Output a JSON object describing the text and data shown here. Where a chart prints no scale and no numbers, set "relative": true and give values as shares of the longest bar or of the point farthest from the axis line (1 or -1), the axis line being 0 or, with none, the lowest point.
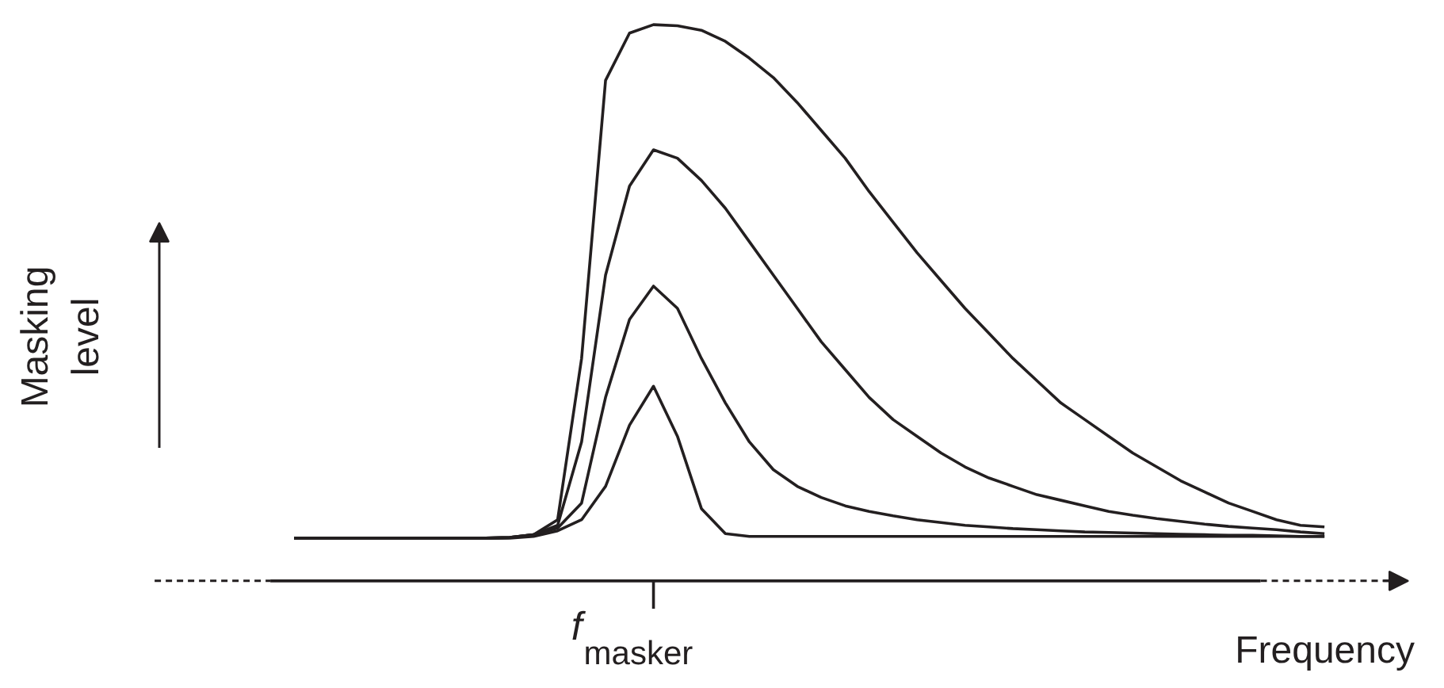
{
  "chart_data": {
    "type": "line",
    "relative": true,
    "xlabel": "Frequency",
    "ylabel": "Masking level",
    "categories": [
      null,
      null,
      null,
      null,
      null,
      null,
      null,
      null,
      null,
      null,
      null,
      null,
      null,
      null,
      null,
      null,
      null,
      null,
      null,
      null,
      null,
      null,
      null,
      null,
      null,
      null,
      null,
      null,
      null,
      null,
      null,
      null,
      null,
      null,
      null,
      null,
      null,
      null,
      null,
      null,
      null,
      null,
      null,
      null
    ],
    "annotations": [
      "f$_{masker}$"
    ],
    "series": [
      {
        "color": "#231f20",
        "values": [
          0.077,
          0.077,
          0.077,
          0.077,
          0.077,
          0.077,
          0.077,
          0.077,
          0.077,
          0.077,
          0.08,
          0.09,
          0.11,
          0.17,
          0.28,
          0.35,
          0.26,
          0.13,
          0.085,
          0.08,
          0.08,
          0.08,
          0.08,
          0.08,
          0.08,
          0.08,
          0.08,
          0.08,
          0.08,
          0.08,
          0.08,
          0.08,
          0.08,
          0.08,
          0.08,
          0.08,
          0.08,
          0.08,
          0.08,
          0.08,
          0.08,
          0.08,
          0.08,
          0.08
        ]
      },
      {
        "color": "#231f20",
        "values": [
          0.077,
          0.077,
          0.077,
          0.077,
          0.077,
          0.077,
          0.077,
          0.077,
          0.077,
          0.078,
          0.083,
          0.095,
          0.14,
          0.33,
          0.47,
          0.53,
          0.49,
          0.4,
          0.32,
          0.25,
          0.2,
          0.17,
          0.15,
          0.135,
          0.125,
          0.117,
          0.11,
          0.105,
          0.1,
          0.097,
          0.094,
          0.092,
          0.09,
          0.088,
          0.087,
          0.086,
          0.085,
          0.084,
          0.083,
          0.082,
          0.082,
          0.081,
          0.08,
          0.08
        ]
      },
      {
        "color": "#231f20",
        "values": [
          0.077,
          0.077,
          0.077,
          0.077,
          0.077,
          0.077,
          0.077,
          0.077,
          0.077,
          0.078,
          0.083,
          0.1,
          0.25,
          0.55,
          0.71,
          0.775,
          0.76,
          0.72,
          0.67,
          0.61,
          0.55,
          0.49,
          0.43,
          0.38,
          0.33,
          0.29,
          0.26,
          0.23,
          0.205,
          0.185,
          0.17,
          0.155,
          0.145,
          0.135,
          0.125,
          0.118,
          0.112,
          0.107,
          0.102,
          0.098,
          0.095,
          0.092,
          0.088,
          0.085
        ]
      },
      {
        "color": "#231f20",
        "values": [
          0.077,
          0.077,
          0.077,
          0.077,
          0.077,
          0.077,
          0.077,
          0.077,
          0.077,
          0.078,
          0.083,
          0.11,
          0.4,
          0.9,
          0.985,
          1.0,
          0.998,
          0.99,
          0.97,
          0.94,
          0.905,
          0.86,
          0.81,
          0.76,
          0.7,
          0.645,
          0.59,
          0.54,
          0.49,
          0.445,
          0.4,
          0.36,
          0.32,
          0.29,
          0.26,
          0.23,
          0.205,
          0.18,
          0.16,
          0.14,
          0.125,
          0.11,
          0.1,
          0.097
        ]
      }
    ]
  }
}
